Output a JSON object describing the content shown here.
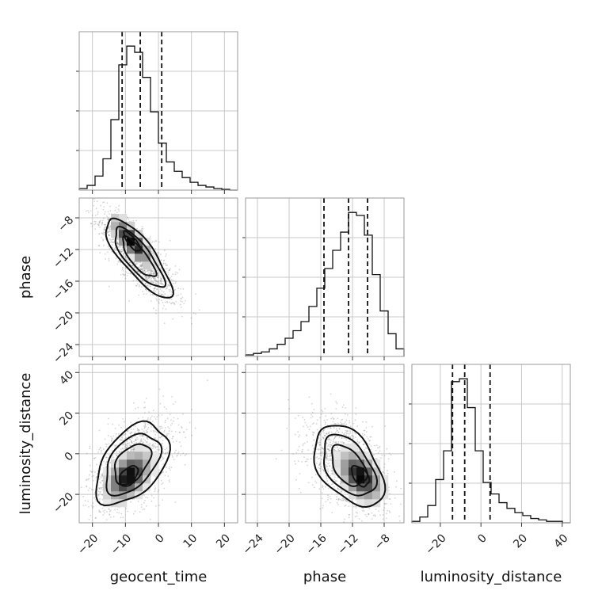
{
  "chart_data": {
    "type": "corner",
    "parameters": [
      "geocent_time",
      "phase",
      "luminosity_distance"
    ],
    "labels": {
      "geocent_time": "geocent_time",
      "phase": "phase",
      "luminosity_distance": "luminosity_distance"
    },
    "ranges": {
      "geocent_time": [
        -24,
        24
      ],
      "phase": [
        -25.5,
        -5.5
      ],
      "luminosity_distance": [
        -34,
        44
      ]
    },
    "ticks": {
      "geocent_time": [
        -20,
        -10,
        0,
        10,
        20
      ],
      "phase": [
        -24,
        -20,
        -16,
        -12,
        -8
      ],
      "luminosity_distance": [
        -20,
        0,
        20,
        40
      ]
    },
    "tick_labels": {
      "geocent_time": [
        "−20",
        "−10",
        "0",
        "10",
        "20"
      ],
      "phase": [
        "−24",
        "−20",
        "−16",
        "−12",
        "−8"
      ],
      "luminosity_distance_x": [
        "−20",
        "0",
        "20",
        "40"
      ],
      "luminosity_distance_y": [
        "−20",
        "0",
        "20",
        "40"
      ]
    },
    "quantiles": {
      "geocent_time": [
        -11,
        -5.5,
        1
      ],
      "phase": [
        -15.6,
        -12.5,
        -10.1
      ],
      "luminosity_distance": [
        -14,
        -8,
        4.5
      ]
    },
    "histograms": {
      "geocent_time": {
        "edges": [
          -24,
          -21.6,
          -19.2,
          -16.8,
          -14.4,
          -12,
          -9.6,
          -7.2,
          -4.8,
          -2.4,
          0,
          2.4,
          4.8,
          7.2,
          9.6,
          12,
          14.4,
          16.8,
          19.2,
          21.6,
          24
        ],
        "counts": [
          1,
          3,
          9,
          20,
          45,
          80,
          92,
          88,
          72,
          50,
          30,
          18,
          12,
          8,
          5,
          3,
          2,
          1,
          0.5,
          0
        ]
      },
      "phase": {
        "edges": [
          -25.5,
          -24.5,
          -23.5,
          -22.5,
          -21.5,
          -20.5,
          -19.5,
          -18.5,
          -17.5,
          -16.5,
          -15.5,
          -14.5,
          -13.5,
          -12.5,
          -11.5,
          -10.5,
          -9.5,
          -8.5,
          -7.5,
          -6.5,
          -5.5
        ],
        "counts": [
          1,
          2,
          3,
          5,
          8,
          12,
          17,
          23,
          33,
          45,
          58,
          70,
          82,
          95,
          93,
          80,
          54,
          30,
          15,
          5
        ]
      },
      "luminosity_distance": {
        "edges": [
          -34,
          -30.1,
          -26.2,
          -22.3,
          -18.4,
          -14.5,
          -10.6,
          -6.7,
          -2.8,
          1.1,
          5,
          8.9,
          12.8,
          16.7,
          20.6,
          24.5,
          28.4,
          32.3,
          36.2,
          40.1,
          44
        ],
        "counts": [
          1,
          4,
          12,
          30,
          50,
          98,
          100,
          80,
          50,
          28,
          20,
          14,
          10,
          7,
          5,
          3,
          2,
          1,
          1,
          0
        ]
      }
    },
    "pairs": [
      {
        "x": "geocent_time",
        "y": "phase",
        "mean": [
          -6,
          -13
        ],
        "sigma": [
          5,
          2.5
        ],
        "rho": -0.8,
        "peak": [
          -8,
          -11
        ],
        "levels_sigma": [
          0.5,
          1.0,
          1.5,
          2.0
        ]
      },
      {
        "x": "geocent_time",
        "y": "luminosity_distance",
        "mean": [
          -8,
          -5
        ],
        "sigma": [
          5.5,
          10
        ],
        "rho": 0.45,
        "peak": [
          -9,
          -11
        ],
        "levels_sigma": [
          0.5,
          1.0,
          1.5,
          2.0
        ]
      },
      {
        "x": "phase",
        "y": "luminosity_distance",
        "mean": [
          -12.5,
          -6
        ],
        "sigma": [
          2.2,
          10
        ],
        "rho": -0.45,
        "peak": [
          -11,
          -11
        ],
        "levels_sigma": [
          0.5,
          1.0,
          1.5,
          2.0
        ]
      }
    ],
    "grid": true,
    "colors": {
      "line": "#111111",
      "grid": "#c8c8c8",
      "frame": "#999999",
      "scatter": "#888888"
    }
  }
}
